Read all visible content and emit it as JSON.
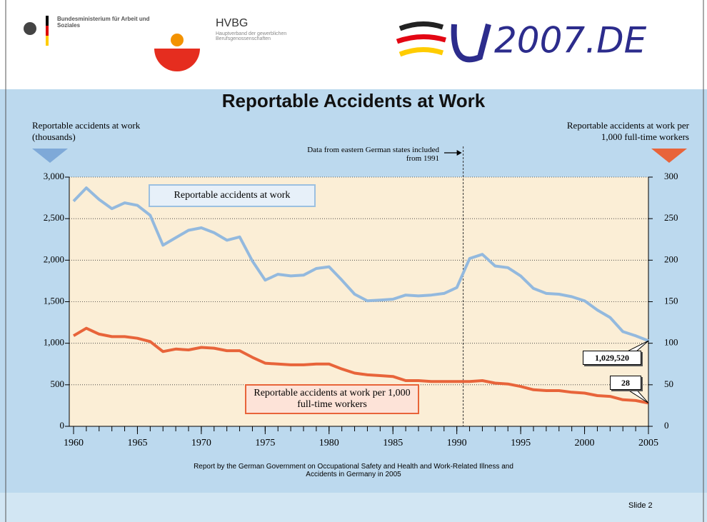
{
  "header": {
    "ministry": "Bundesministerium für Arbeit und Soziales",
    "hvbg_name": "HVBG",
    "hvbg_subtitle": "Hauptverband der gewerblichen Berufsgenossenschaften",
    "eu_logo": "2007.DE"
  },
  "chart_data": {
    "type": "line",
    "title": "Reportable Accidents at Work",
    "y_label": "Reportable accidents at work (thousands)",
    "y2_label": "Reportable accidents at work per 1,000 full-time workers",
    "annotation": "Data from eastern German states included from 1991",
    "x": [
      1960,
      1961,
      1962,
      1963,
      1964,
      1965,
      1966,
      1967,
      1968,
      1969,
      1970,
      1971,
      1972,
      1973,
      1974,
      1975,
      1976,
      1977,
      1978,
      1979,
      1980,
      1981,
      1982,
      1983,
      1984,
      1985,
      1986,
      1987,
      1988,
      1989,
      1990,
      1991,
      1992,
      1993,
      1994,
      1995,
      1996,
      1997,
      1998,
      1999,
      2000,
      2001,
      2002,
      2003,
      2004,
      2005
    ],
    "xlim": [
      1960,
      2005
    ],
    "xticks": [
      1960,
      1965,
      1970,
      1975,
      1980,
      1985,
      1990,
      1995,
      2000,
      2005
    ],
    "ylim": [
      0,
      3000
    ],
    "yticks": [
      0,
      500,
      {
        "value": 1000,
        "label": "1,000"
      },
      {
        "value": 1500,
        "label": "1,500"
      },
      {
        "value": 2000,
        "label": "2,000"
      },
      {
        "value": 2500,
        "label": "2,500"
      },
      {
        "value": 3000,
        "label": "3,000"
      }
    ],
    "y2lim": [
      0,
      300
    ],
    "y2ticks": [
      0,
      50,
      100,
      150,
      200,
      250,
      300
    ],
    "grid": true,
    "series": [
      {
        "name": "Reportable accidents at work",
        "color": "#93b9de",
        "values": [
          2710,
          2870,
          2730,
          2620,
          2690,
          2660,
          2540,
          2180,
          2270,
          2360,
          2390,
          2330,
          2240,
          2280,
          1990,
          1760,
          1830,
          1810,
          1820,
          1900,
          1920,
          1760,
          1590,
          1510,
          1520,
          1530,
          1580,
          1570,
          1580,
          1600,
          1670,
          2020,
          2070,
          1930,
          1910,
          1810,
          1660,
          1600,
          1590,
          1560,
          1510,
          1400,
          1310,
          1140,
          1090,
          1029.52
        ],
        "value_labels": [
          null,
          null,
          null,
          null,
          null,
          null,
          null,
          null,
          null,
          null,
          null,
          null,
          null,
          null,
          null,
          null,
          null,
          null,
          null,
          null,
          null,
          null,
          null,
          null,
          null,
          null,
          null,
          null,
          null,
          null,
          null,
          null,
          null,
          null,
          null,
          null,
          null,
          null,
          null,
          null,
          null,
          null,
          null,
          null,
          null,
          "1,029,520"
        ]
      },
      {
        "name": "Reportable accidents at work per 1,000 full-time workers",
        "color": "#e8643a",
        "axis": "y2",
        "values": [
          109,
          118,
          111,
          108,
          108,
          106,
          102,
          90,
          93,
          92,
          95,
          94,
          91,
          91,
          83,
          76,
          75,
          74,
          74,
          75,
          75,
          69,
          64,
          62,
          61,
          60,
          55,
          55,
          54,
          54,
          54,
          54,
          55,
          52,
          51,
          48,
          44,
          43,
          43,
          41,
          40,
          37,
          36,
          32,
          31,
          28
        ]
      }
    ]
  },
  "footer": {
    "note": "Report by the German Government on Occupational Safety and Health and Work-Related Illness and Accidents in Germany in 2005",
    "slide": "Slide 2"
  }
}
